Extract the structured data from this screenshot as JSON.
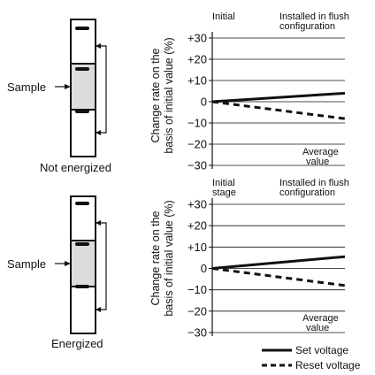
{
  "labels": {
    "sample": "Sample",
    "not_energized": "Not energized",
    "energized": "Energized"
  },
  "legend": {
    "set_label": "Set voltage",
    "reset_label": "Reset voltage"
  },
  "chart_data": [
    {
      "type": "line",
      "ylabel_line1": "Change rate on the",
      "ylabel_line2": "basis of initial value (%)",
      "annotation_left": "Initial",
      "annotation_right_line1": "Installed in flush",
      "annotation_right_line2": "configuration",
      "note_line1": "Average",
      "note_line2": "value",
      "yticks": [
        "+30",
        "+20",
        "+10",
        "0",
        "−10",
        "−20",
        "−30"
      ],
      "tick_values": [
        30,
        20,
        10,
        0,
        -10,
        -20,
        -30
      ],
      "ylim": [
        -30,
        30
      ],
      "grid": true,
      "series": [
        {
          "name": "Set voltage",
          "style": "solid",
          "x": [
            0,
            1
          ],
          "y": [
            0,
            4
          ]
        },
        {
          "name": "Reset voltage",
          "style": "dashed",
          "x": [
            0,
            1
          ],
          "y": [
            0,
            -8
          ]
        }
      ]
    },
    {
      "type": "line",
      "ylabel_line1": "Change rate on the",
      "ylabel_line2": "basis of initial value (%)",
      "annotation_left": "Initial",
      "annotation_left_line2": "stage",
      "annotation_right_line1": "Installed in flush",
      "annotation_right_line2": "configuration",
      "note_line1": "Average",
      "note_line2": "value",
      "yticks": [
        "+30",
        "+20",
        "+10",
        "0",
        "−10",
        "−20",
        "−30"
      ],
      "tick_values": [
        30,
        20,
        10,
        0,
        -10,
        -20,
        -30
      ],
      "ylim": [
        -30,
        30
      ],
      "grid": true,
      "series": [
        {
          "name": "Set voltage",
          "style": "solid",
          "x": [
            0,
            1
          ],
          "y": [
            0,
            5.5
          ]
        },
        {
          "name": "Reset voltage",
          "style": "dashed",
          "x": [
            0,
            1
          ],
          "y": [
            0,
            -8
          ]
        }
      ]
    }
  ]
}
